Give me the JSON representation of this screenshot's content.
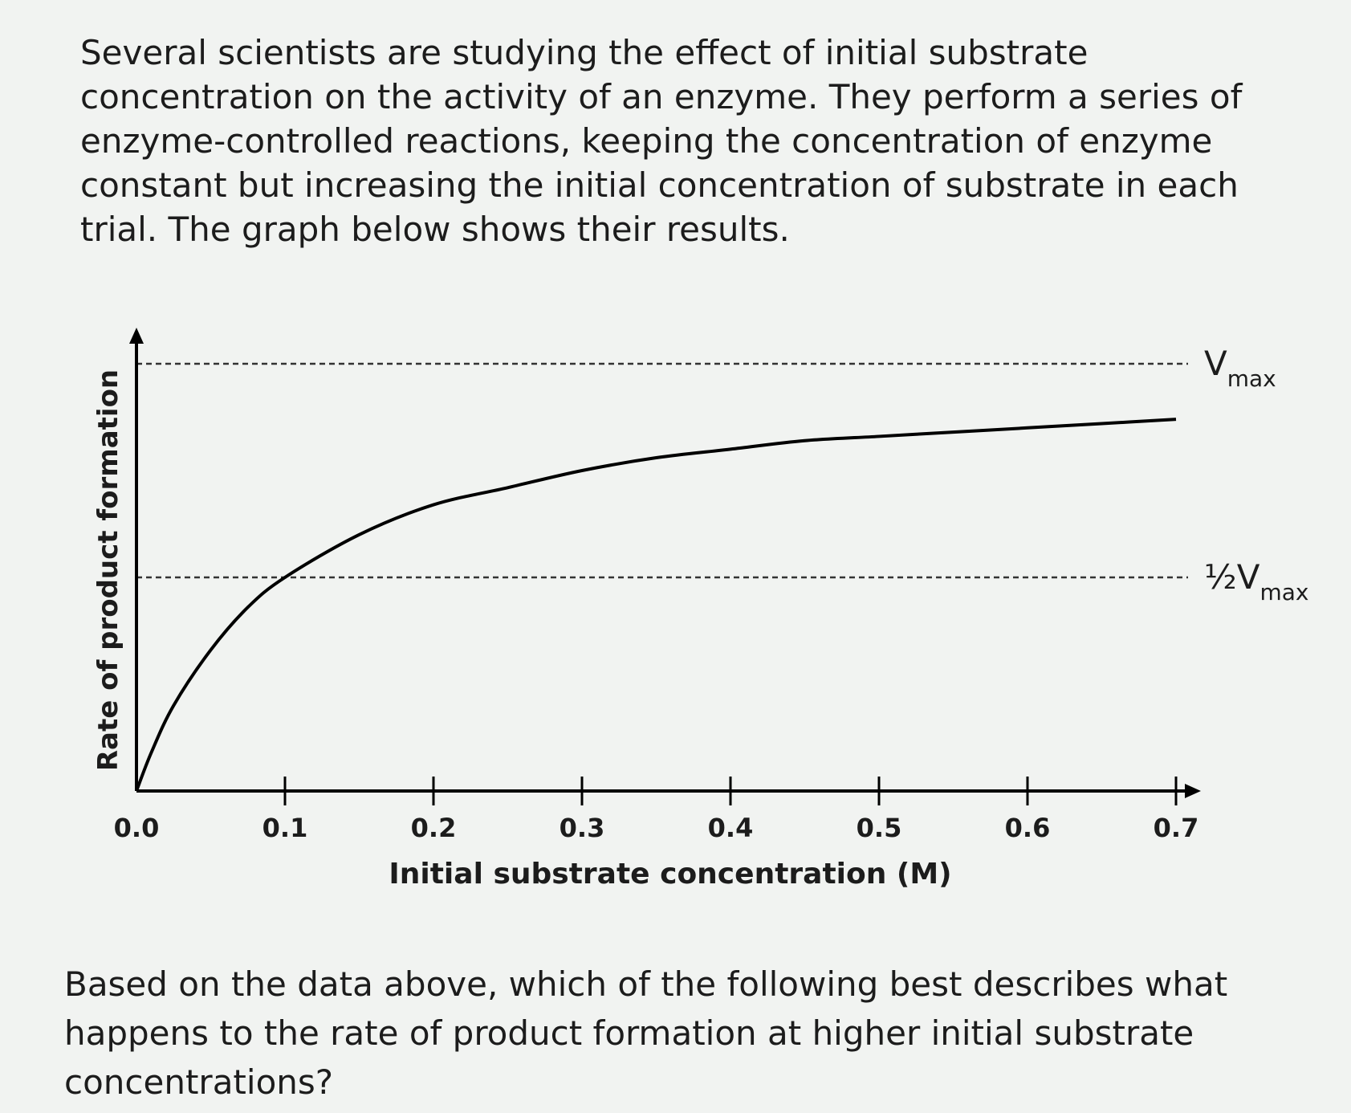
{
  "intro_text": "Several scientists are studying the effect of initial substrate concentration on the activity of an enzyme. They perform a series of enzyme-controlled reactions, keeping the concentration of enzyme constant but increasing the initial concentration of substrate in each trial. The graph below shows their results.",
  "question_text": "Based on the data above, which of the following best describes what happens to the rate of product formation at higher initial substrate concentrations?",
  "chart_data": {
    "type": "line",
    "title": "",
    "xlabel": "Initial substrate concentration (M)",
    "ylabel": "Rate of product formation",
    "xlim": [
      0,
      0.7
    ],
    "x_ticks": [
      "0.0",
      "0.1",
      "0.2",
      "0.3",
      "0.4",
      "0.5",
      "0.6",
      "0.7"
    ],
    "ylim": [
      0,
      1
    ],
    "grid": false,
    "reference_lines": [
      {
        "y": 1.0,
        "label_main": "V",
        "label_sub": "max"
      },
      {
        "y": 0.5,
        "label_main": "½V",
        "label_sub": "max"
      }
    ],
    "series": [
      {
        "x": [
          0,
          0.01,
          0.025,
          0.05,
          0.075,
          0.1,
          0.15,
          0.2,
          0.25,
          0.3,
          0.35,
          0.4,
          0.45,
          0.5,
          0.55,
          0.6,
          0.65,
          0.7
        ],
        "y": [
          0,
          0.09,
          0.2,
          0.33,
          0.43,
          0.5,
          0.6,
          0.67,
          0.71,
          0.75,
          0.78,
          0.8,
          0.82,
          0.83,
          0.84,
          0.85,
          0.86,
          0.87
        ],
        "color": "#000000"
      }
    ]
  }
}
